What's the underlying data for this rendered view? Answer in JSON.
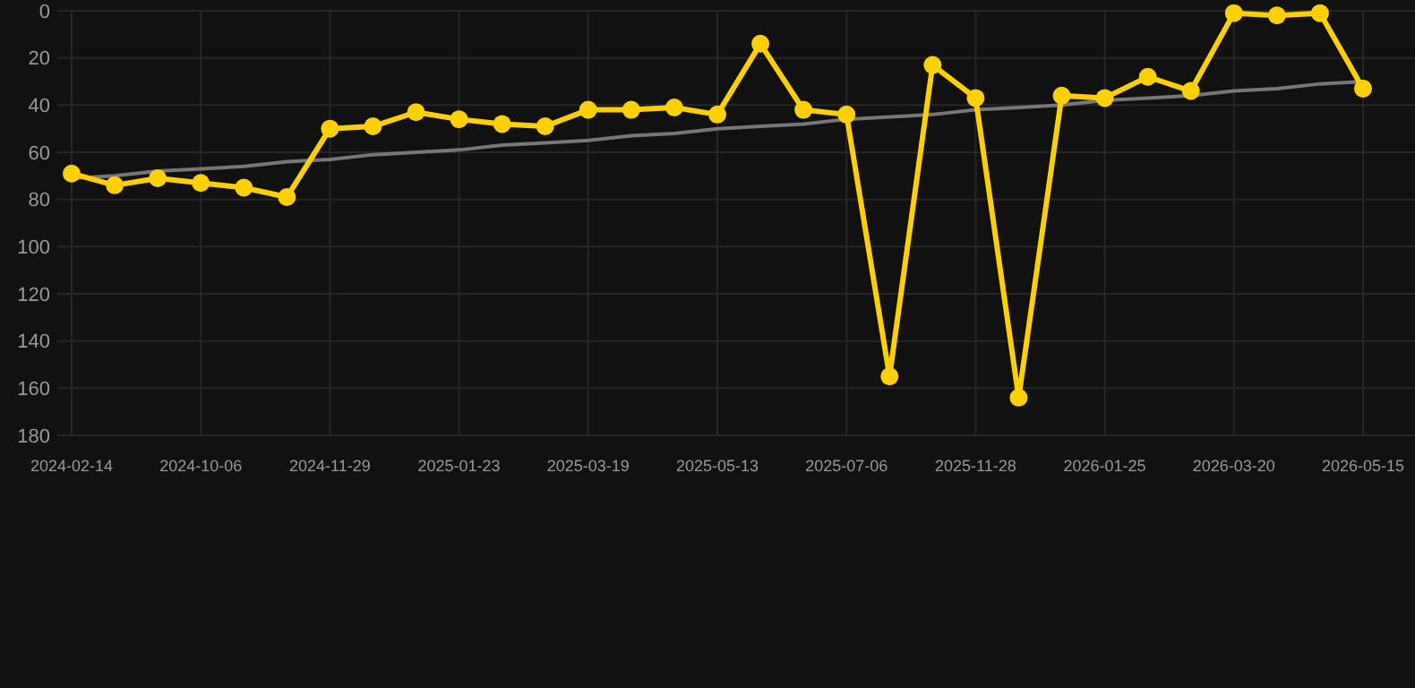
{
  "chart_data": {
    "type": "line",
    "categories": [
      "2024-02-14",
      null,
      null,
      "2024-10-06",
      null,
      null,
      "2024-11-29",
      null,
      null,
      "2025-01-23",
      null,
      null,
      "2025-03-19",
      null,
      null,
      "2025-05-13",
      null,
      null,
      "2025-07-06",
      null,
      null,
      "2025-11-28",
      null,
      null,
      "2026-01-25",
      null,
      null,
      "2026-03-20",
      null,
      null,
      "2026-05-15"
    ],
    "series": [
      {
        "color": "#ffd000",
        "values": [
          69,
          74,
          71,
          73,
          75,
          79,
          50,
          49,
          43,
          46,
          48,
          49,
          42,
          42,
          41,
          44,
          14,
          42,
          44,
          155,
          23,
          37,
          164,
          36,
          37,
          28,
          34,
          1,
          2,
          1,
          33
        ]
      },
      {
        "type": "line",
        "color": "#777777",
        "values": [
          71,
          70,
          68,
          67,
          66,
          64,
          63,
          61,
          60,
          59,
          57,
          56,
          55,
          53,
          52,
          50,
          49,
          48,
          46,
          45,
          44,
          42,
          41,
          40,
          38,
          37,
          36,
          34,
          33,
          31,
          30
        ],
        "marker": "none"
      }
    ],
    "ylim": [
      180,
      0
    ],
    "yticks": [
      0,
      20,
      40,
      60,
      80,
      100,
      120,
      140,
      160,
      180
    ],
    "grid": true,
    "marker": "circle",
    "line_style": "solid"
  }
}
